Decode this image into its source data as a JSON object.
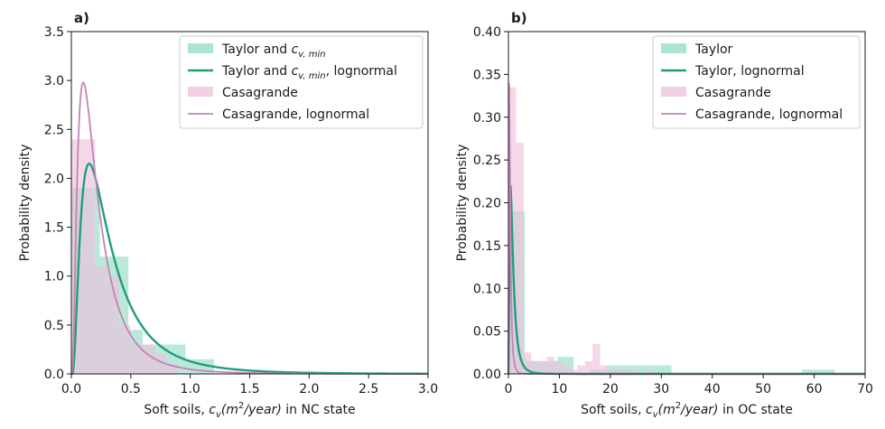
{
  "colors": {
    "taylor": "#8fdcc2",
    "taylor_line": "#1f9e7e",
    "casagrande": "#efbfdb",
    "casagrande_line": "#c582b8"
  },
  "chart_data": [
    {
      "type": "histogram+line",
      "panel_label": "a)",
      "xlabel_prefix": "Soft soils, ",
      "xlabel_math": "c",
      "xlabel_math_sub": "v",
      "xlabel_math_tail": "(m",
      "xlabel_math_sup": "2",
      "xlabel_math_end": "/year)",
      "xlabel_suffix": " in NC state",
      "ylabel": "Probability density",
      "xlim": [
        0.0,
        3.0
      ],
      "ylim": [
        0.0,
        3.5
      ],
      "xticks": [
        0.0,
        0.5,
        1.0,
        1.5,
        2.0,
        2.5,
        3.0
      ],
      "xtick_labels": [
        "0.0",
        "0.5",
        "1.0",
        "1.5",
        "2.0",
        "2.5",
        "3.0"
      ],
      "yticks": [
        0.0,
        0.5,
        1.0,
        1.5,
        2.0,
        2.5,
        3.0,
        3.5
      ],
      "ytick_labels": [
        "0.0",
        "0.5",
        "1.0",
        "1.5",
        "2.0",
        "2.5",
        "3.0",
        "3.5"
      ],
      "legend": [
        {
          "kind": "patch",
          "series": "taylor",
          "text": "Taylor and ",
          "math": "c",
          "math_sub": "v, min",
          "tail": ""
        },
        {
          "kind": "line",
          "series": "taylor",
          "text": "Taylor and ",
          "math": "c",
          "math_sub": "v, min",
          "tail": ", lognormal"
        },
        {
          "kind": "patch",
          "series": "casagrande",
          "text": "Casagrande",
          "math": "",
          "math_sub": "",
          "tail": ""
        },
        {
          "kind": "line",
          "series": "casagrande",
          "text": "Casagrande, lognormal",
          "math": "",
          "math_sub": "",
          "tail": ""
        }
      ],
      "histograms": [
        {
          "series": "taylor",
          "bin_edges": [
            0.0,
            0.12,
            0.24,
            0.36,
            0.48,
            0.6,
            0.72,
            0.84,
            0.96,
            1.08,
            1.2
          ],
          "densities": [
            1.9,
            1.9,
            1.2,
            1.2,
            0.45,
            0.3,
            0.3,
            0.3,
            0.15,
            0.15
          ]
        },
        {
          "series": "casagrande",
          "bin_edges": [
            0.0,
            0.1,
            0.2,
            0.3,
            0.4,
            0.5,
            0.6,
            0.7,
            0.8,
            0.9,
            1.0
          ],
          "densities": [
            2.4,
            2.4,
            1.1,
            1.0,
            0.5,
            0.3,
            0.3,
            0.2,
            0.1,
            0.0
          ]
        }
      ],
      "curves": [
        {
          "series": "taylor",
          "kind": "lognormal",
          "mode": 0.15,
          "peak": 2.15
        },
        {
          "series": "casagrande",
          "kind": "lognormal",
          "mode": 0.1,
          "peak": 2.98
        }
      ]
    },
    {
      "type": "histogram+line",
      "panel_label": "b)",
      "xlabel_prefix": "Soft soils, ",
      "xlabel_math": "c",
      "xlabel_math_sub": "v",
      "xlabel_math_tail": "(m",
      "xlabel_math_sup": "2",
      "xlabel_math_end": "/year)",
      "xlabel_suffix": " in OC state",
      "ylabel": "Probability density",
      "xlim": [
        0,
        70
      ],
      "ylim": [
        0.0,
        0.4
      ],
      "xticks": [
        0,
        10,
        20,
        30,
        40,
        50,
        60,
        70
      ],
      "xtick_labels": [
        "0",
        "10",
        "20",
        "30",
        "40",
        "50",
        "60",
        "70"
      ],
      "yticks": [
        0.0,
        0.05,
        0.1,
        0.15,
        0.2,
        0.25,
        0.3,
        0.35,
        0.4
      ],
      "ytick_labels": [
        "0.00",
        "0.05",
        "0.10",
        "0.15",
        "0.20",
        "0.25",
        "0.30",
        "0.35",
        "0.40"
      ],
      "legend": [
        {
          "kind": "patch",
          "series": "taylor",
          "text": "Taylor",
          "math": "",
          "math_sub": "",
          "tail": ""
        },
        {
          "kind": "line",
          "series": "taylor",
          "text": "Taylor, lognormal",
          "math": "",
          "math_sub": "",
          "tail": ""
        },
        {
          "kind": "patch",
          "series": "casagrande",
          "text": "Casagrande",
          "math": "",
          "math_sub": "",
          "tail": ""
        },
        {
          "kind": "line",
          "series": "casagrande",
          "text": "Casagrande, lognormal",
          "math": "",
          "math_sub": "",
          "tail": ""
        }
      ],
      "histograms": [
        {
          "series": "taylor",
          "bin_edges": [
            0.0,
            3.2,
            6.4,
            9.6,
            12.8,
            16.0,
            19.2,
            22.4,
            25.6,
            28.8,
            32.0,
            35.2,
            38.4,
            41.6,
            44.8,
            48.0,
            51.2,
            54.4,
            57.6,
            60.8,
            64.0
          ],
          "densities": [
            0.19,
            0.015,
            0.015,
            0.02,
            0.0,
            0.005,
            0.01,
            0.01,
            0.01,
            0.01,
            0.0,
            0.0,
            0.0,
            0.0,
            0.0,
            0.0,
            0.0,
            0.0,
            0.005,
            0.005
          ]
        },
        {
          "series": "casagrande",
          "bin_edges": [
            0.0,
            1.5,
            3.0,
            4.5,
            6.0,
            7.5,
            9.0,
            10.5,
            12.0,
            13.5,
            15.0,
            16.5,
            18.0,
            19.5,
            21.0,
            22.5,
            24.0,
            25.5,
            27.0,
            28.5,
            30.0
          ],
          "densities": [
            0.335,
            0.27,
            0.025,
            0.015,
            0.015,
            0.02,
            0.015,
            0.01,
            0.005,
            0.01,
            0.015,
            0.035,
            0.01,
            0.005,
            0.005,
            0.005,
            0.005,
            0.0,
            0.005,
            0.0
          ]
        }
      ],
      "curves": [
        {
          "series": "taylor",
          "kind": "lognormal",
          "mode": 0.4,
          "peak": 0.22
        },
        {
          "series": "casagrande",
          "kind": "lognormal",
          "mode": 0.15,
          "peak": 0.34
        }
      ]
    }
  ]
}
